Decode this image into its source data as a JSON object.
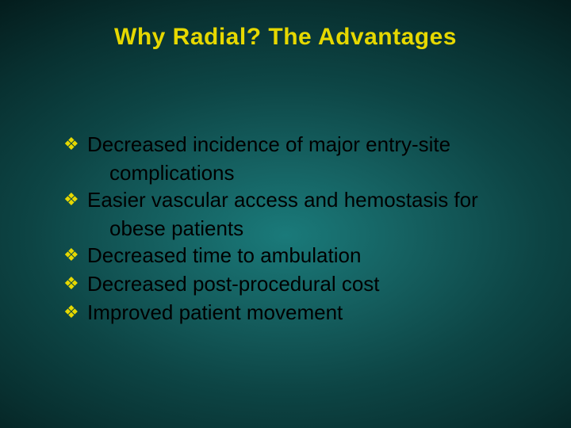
{
  "slide": {
    "title": "Why Radial? The Advantages",
    "title_color": "#e6d800",
    "bullet_glyph": "❖",
    "bullet_color": "#e6d800",
    "text_color": "#000000",
    "title_fontsize": 30,
    "body_fontsize": 26,
    "background": {
      "type": "radial-gradient",
      "center_color": "#1a7a7a",
      "edge_color": "#000000"
    },
    "items": [
      {
        "line1": " Decreased incidence of major entry-site",
        "line2": "complications"
      },
      {
        "line1": "Easier vascular access and hemostasis for",
        "line2": "obese patients"
      },
      {
        "line1": "Decreased time to ambulation"
      },
      {
        "line1": "Decreased post-procedural cost"
      },
      {
        "line1": "Improved patient movement"
      }
    ]
  }
}
